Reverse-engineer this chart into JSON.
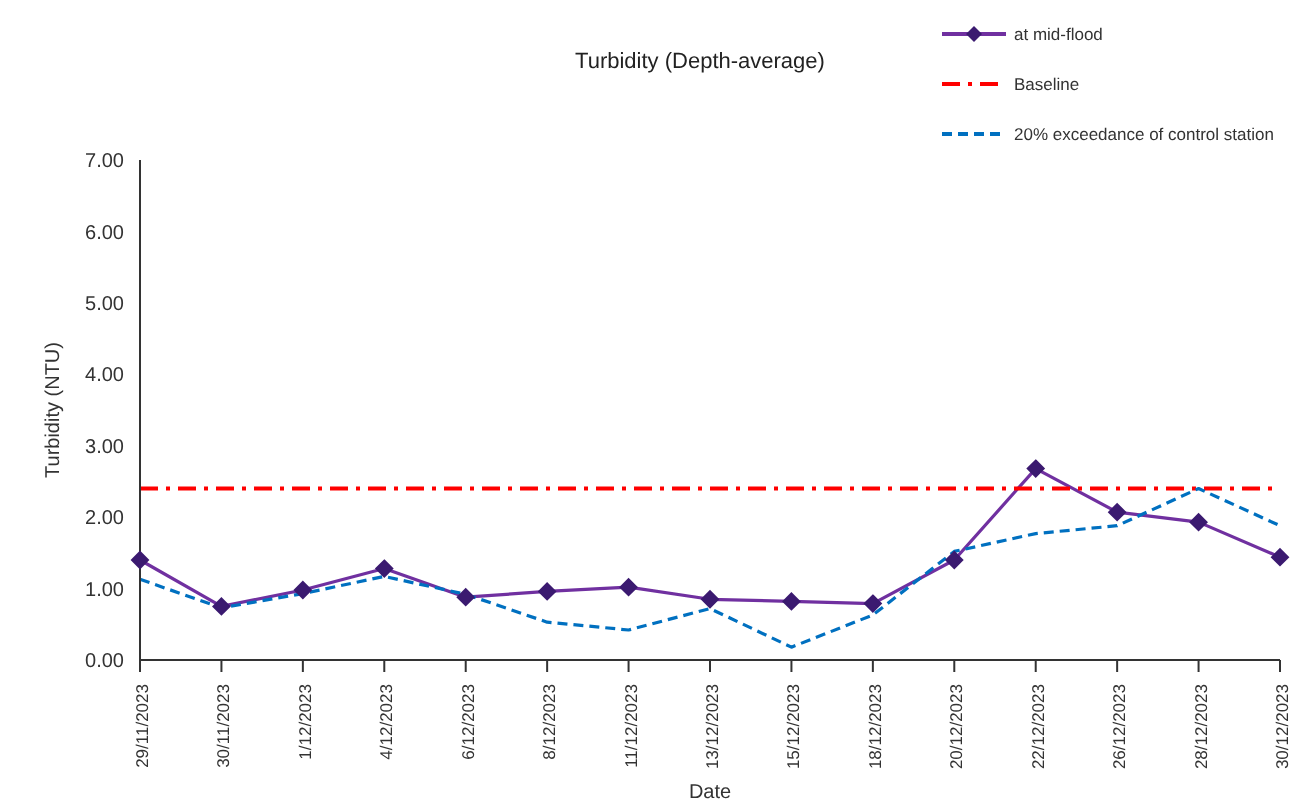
{
  "chart_data": {
    "type": "line",
    "title": "Turbidity (Depth-average)",
    "xlabel": "Date",
    "ylabel": "Turbidity (NTU)",
    "categories": [
      "29/11/2023",
      "30/11/2023",
      "1/12/2023",
      "4/12/2023",
      "6/12/2023",
      "8/12/2023",
      "11/12/2023",
      "13/12/2023",
      "15/12/2023",
      "18/12/2023",
      "20/12/2023",
      "22/12/2023",
      "26/12/2023",
      "28/12/2023",
      "30/12/2023"
    ],
    "series": [
      {
        "name": "at mid-flood",
        "color": "#7030a0",
        "marker": "diamond",
        "line_style": "solid",
        "values": [
          1.4,
          0.75,
          0.98,
          1.28,
          0.88,
          0.96,
          1.02,
          0.85,
          0.82,
          0.79,
          1.4,
          2.68,
          2.07,
          1.93,
          1.44
        ]
      },
      {
        "name": "Baseline",
        "color": "#ff0000",
        "marker": "none",
        "line_style": "dashdot",
        "values": [
          2.4,
          2.4,
          2.4,
          2.4,
          2.4,
          2.4,
          2.4,
          2.4,
          2.4,
          2.4,
          2.4,
          2.4,
          2.4,
          2.4,
          2.4
        ]
      },
      {
        "name": "20% exceedance of control station",
        "color": "#0070c0",
        "marker": "none",
        "line_style": "dashed",
        "values": [
          1.13,
          0.73,
          0.93,
          1.17,
          0.92,
          0.53,
          0.42,
          0.72,
          0.18,
          0.63,
          1.52,
          1.77,
          1.88,
          2.4,
          1.88
        ]
      }
    ],
    "ylim": [
      0,
      7
    ],
    "yticks": [
      {
        "value": 0,
        "label": "0.00"
      },
      {
        "value": 1,
        "label": "1.00"
      },
      {
        "value": 2,
        "label": "2.00"
      },
      {
        "value": 3,
        "label": "3.00"
      },
      {
        "value": 4,
        "label": "4.00"
      },
      {
        "value": 5,
        "label": "5.00"
      },
      {
        "value": 6,
        "label": "6.00"
      },
      {
        "value": 7,
        "label": "7.00"
      }
    ],
    "grid": false,
    "legend": "top right"
  }
}
